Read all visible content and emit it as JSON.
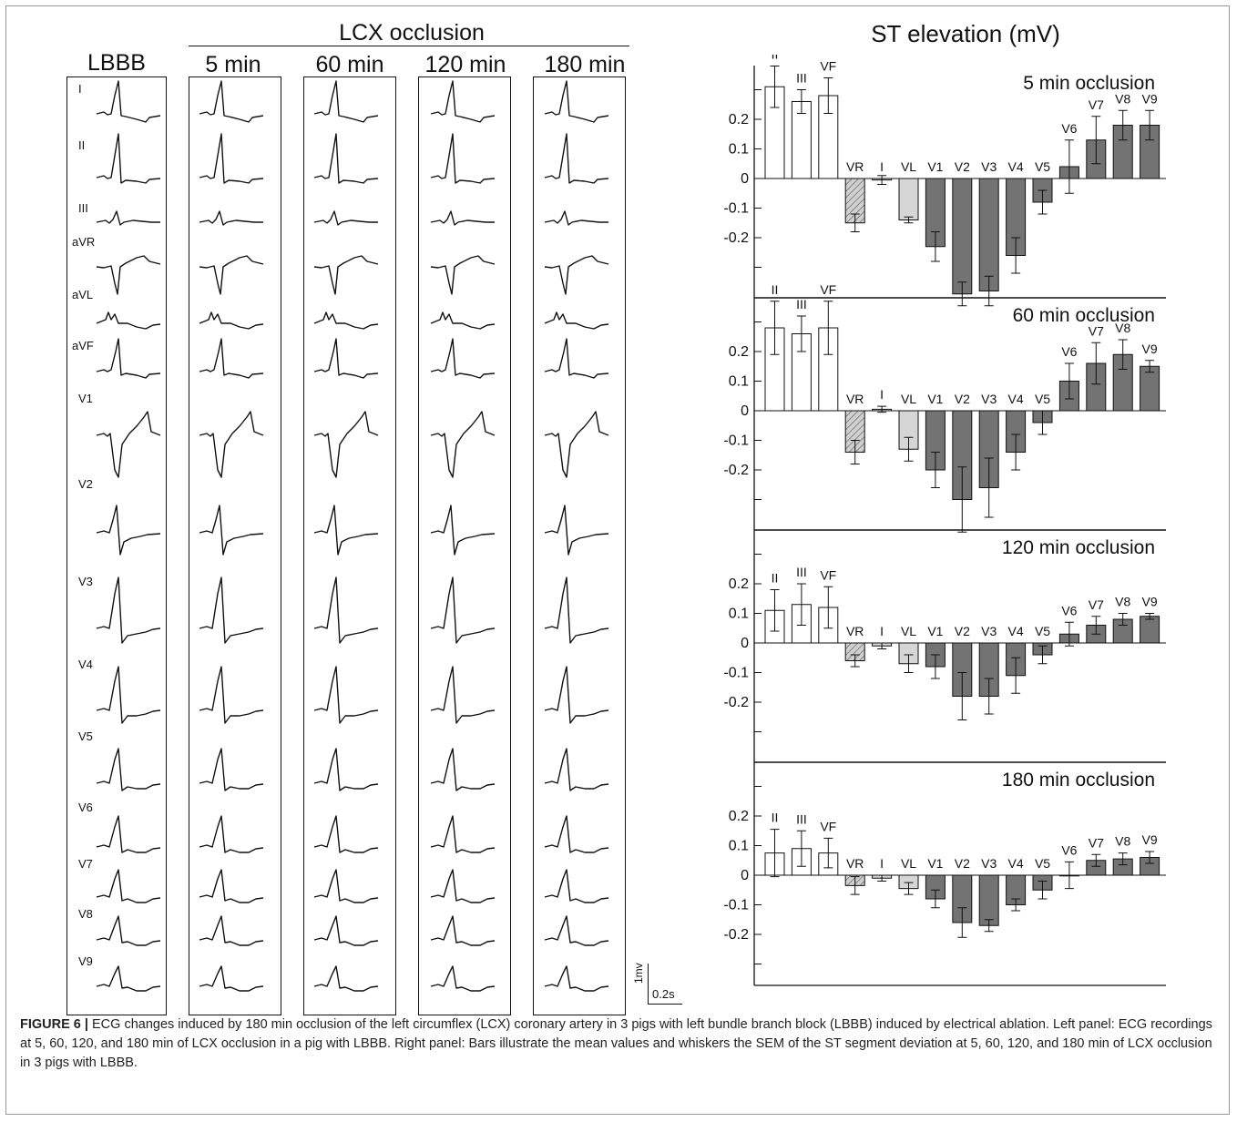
{
  "figure_label": "FIGURE 6 |",
  "caption_text": " ECG changes induced by 180 min occlusion of the left circumflex (LCX) coronary artery in 3 pigs with left bundle branch block (LBBB) induced by electrical ablation. Left panel: ECG recordings at 5, 60, 120, and 180 min of LCX occlusion in a pig with LBBB. Right panel: Bars illustrate the mean values and whiskers the SEM of the ST segment deviation at 5, 60, 120, and 180 min of LCX occlusion in 3 pigs with LBBB.",
  "left_panel": {
    "group_title": "LCX occlusion",
    "columns": [
      "LBBB",
      "5 min",
      "60 min",
      "120 min",
      "180 min"
    ],
    "leads": [
      "I",
      "II",
      "III",
      "aVR",
      "aVL",
      "aVF",
      "V1",
      "V2",
      "V3",
      "V4",
      "V5",
      "V6",
      "V7",
      "V8",
      "V9"
    ],
    "scale_bar": {
      "amplitude": "1mv",
      "time": "0.2s"
    }
  },
  "right_panel": {
    "title": "ST elevation (mV)",
    "chart_data": [
      {
        "type": "bar",
        "title": "5 min occlusion",
        "ylabel": "",
        "ylim": [
          -0.4,
          0.4
        ],
        "yticks": [
          "0.2",
          "0.1",
          "0",
          "-0.1",
          "-0.2"
        ],
        "categories": [
          "II",
          "III",
          "VF",
          "VR",
          "I",
          "VL",
          "V1",
          "V2",
          "V3",
          "V4",
          "V5",
          "V6",
          "V7",
          "V8",
          "V9"
        ],
        "values": [
          0.31,
          0.26,
          0.28,
          -0.15,
          -0.005,
          -0.14,
          -0.23,
          -0.39,
          -0.38,
          -0.26,
          -0.08,
          0.04,
          0.13,
          0.18,
          0.18
        ],
        "errors": [
          0.07,
          0.04,
          0.06,
          0.03,
          0.015,
          0.01,
          0.05,
          0.04,
          0.05,
          0.06,
          0.04,
          0.09,
          0.08,
          0.05,
          0.05
        ]
      },
      {
        "type": "bar",
        "title": "60 min occlusion",
        "ylabel": "",
        "ylim": [
          -0.4,
          0.4
        ],
        "yticks": [
          "0.2",
          "0.1",
          "0",
          "-0.1",
          "-0.2"
        ],
        "categories": [
          "II",
          "III",
          "VF",
          "VR",
          "I",
          "VL",
          "V1",
          "V2",
          "V3",
          "V4",
          "V5",
          "V6",
          "V7",
          "V8",
          "V9"
        ],
        "values": [
          0.28,
          0.26,
          0.28,
          -0.14,
          0.005,
          -0.13,
          -0.2,
          -0.3,
          -0.26,
          -0.14,
          -0.04,
          0.1,
          0.16,
          0.19,
          0.15
        ],
        "errors": [
          0.09,
          0.06,
          0.09,
          0.04,
          0.01,
          0.04,
          0.06,
          0.11,
          0.1,
          0.06,
          0.04,
          0.06,
          0.07,
          0.05,
          0.02
        ]
      },
      {
        "type": "bar",
        "title": "120 min occlusion",
        "ylabel": "",
        "ylim": [
          -0.4,
          0.4
        ],
        "yticks": [
          "0.2",
          "0.1",
          "0",
          "-0.1",
          "-0.2"
        ],
        "categories": [
          "II",
          "III",
          "VF",
          "VR",
          "I",
          "VL",
          "V1",
          "V2",
          "V3",
          "V4",
          "V5",
          "V6",
          "V7",
          "V8",
          "V9"
        ],
        "values": [
          0.11,
          0.13,
          0.12,
          -0.06,
          -0.01,
          -0.07,
          -0.08,
          -0.18,
          -0.18,
          -0.11,
          -0.04,
          0.03,
          0.06,
          0.08,
          0.09
        ],
        "errors": [
          0.07,
          0.07,
          0.07,
          0.02,
          0.01,
          0.03,
          0.04,
          0.08,
          0.06,
          0.06,
          0.03,
          0.04,
          0.03,
          0.02,
          0.01
        ]
      },
      {
        "type": "bar",
        "title": "180 min occlusion",
        "ylabel": "",
        "ylim": [
          -0.4,
          0.4
        ],
        "yticks": [
          "0.2",
          "0.1",
          "0",
          "-0.1",
          "-0.2"
        ],
        "categories": [
          "II",
          "III",
          "VF",
          "VR",
          "I",
          "VL",
          "V1",
          "V2",
          "V3",
          "V4",
          "V5",
          "V6",
          "V7",
          "V8",
          "V9"
        ],
        "values": [
          0.075,
          0.09,
          0.075,
          -0.035,
          -0.01,
          -0.045,
          -0.08,
          -0.16,
          -0.17,
          -0.1,
          -0.05,
          0.0,
          0.05,
          0.055,
          0.06
        ],
        "errors": [
          0.08,
          0.06,
          0.05,
          0.03,
          0.01,
          0.02,
          0.03,
          0.05,
          0.02,
          0.02,
          0.03,
          0.045,
          0.02,
          0.02,
          0.02
        ]
      }
    ]
  },
  "colors": {
    "limb_positive": "#ffffff",
    "avr": "#d0d0d0",
    "avl": "#d6d6d6",
    "precordial": "#737373",
    "outline": "#111111"
  }
}
